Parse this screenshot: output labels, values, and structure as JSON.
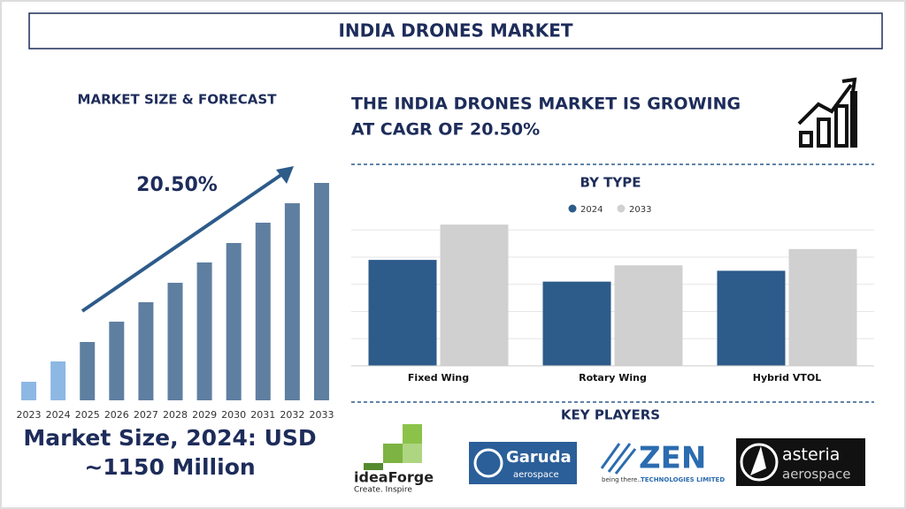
{
  "title": "INDIA DRONES MARKET",
  "headline": [
    "THE INDIA DRONES MARKET IS GROWING",
    "AT CAGR OF 20.50%"
  ],
  "key_players": {
    "title": "KEY PLAYERS",
    "logos": [
      {
        "name": "ideaForge",
        "tagline": "Create. Inspire"
      },
      {
        "name": "Garuda",
        "tagline": "aerospace"
      },
      {
        "name": "ZEN",
        "tagline": "being there...",
        "subtitle": "TECHNOLOGIES LIMITED"
      },
      {
        "name": "asteria",
        "tagline": "aerospace"
      }
    ]
  },
  "market_size": [
    "Market Size, 2024: USD",
    "~1150 Million"
  ],
  "chart_data": [
    {
      "type": "bar",
      "title": "MARKET SIZE & FORECAST",
      "annotation": "20.50%",
      "categories": [
        "2023",
        "2024",
        "2025",
        "2026",
        "2027",
        "2028",
        "2029",
        "2030",
        "2031",
        "2032",
        "2033"
      ],
      "values": [
        21,
        44,
        66,
        89,
        111,
        133,
        156,
        178,
        201,
        223,
        246
      ],
      "colors": [
        "#8db8e4",
        "#8db8e4",
        "#5f7fa1",
        "#5f7fa1",
        "#5f7fa1",
        "#5f7fa1",
        "#5f7fa1",
        "#5f7fa1",
        "#5f7fa1",
        "#5f7fa1",
        "#5f7fa1"
      ],
      "ylim": [
        0,
        250
      ]
    },
    {
      "type": "grouped_bar",
      "title": "BY TYPE",
      "categories": [
        "Fixed Wing",
        "Rotary Wing",
        "Hybrid VTOL"
      ],
      "series": [
        {
          "name": "2024",
          "color": "#2d5b8a",
          "values": [
            3.9,
            3.1,
            3.5
          ]
        },
        {
          "name": "2033",
          "color": "#d0d0d0",
          "values": [
            5.2,
            3.7,
            4.3
          ]
        }
      ],
      "ylim": [
        0,
        5.4
      ],
      "yticks": [
        1,
        2,
        3,
        4,
        5
      ],
      "grid": true,
      "legend": "top"
    }
  ]
}
